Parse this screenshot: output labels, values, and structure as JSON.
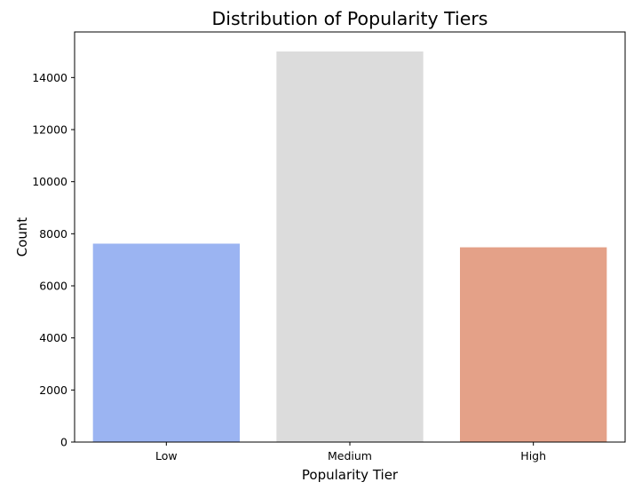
{
  "chart_data": {
    "type": "bar",
    "title": "Distribution of Popularity Tiers",
    "xlabel": "Popularity Tier",
    "ylabel": "Count",
    "categories": [
      "Low",
      "Medium",
      "High"
    ],
    "values": [
      7620,
      15000,
      7480
    ],
    "colors": [
      "#9bb4f2",
      "#dcdcdc",
      "#e4a188"
    ],
    "ylim": [
      0,
      15750
    ],
    "yticks": [
      0,
      2000,
      4000,
      6000,
      8000,
      10000,
      12000,
      14000
    ],
    "grid": false,
    "legend": "none"
  }
}
